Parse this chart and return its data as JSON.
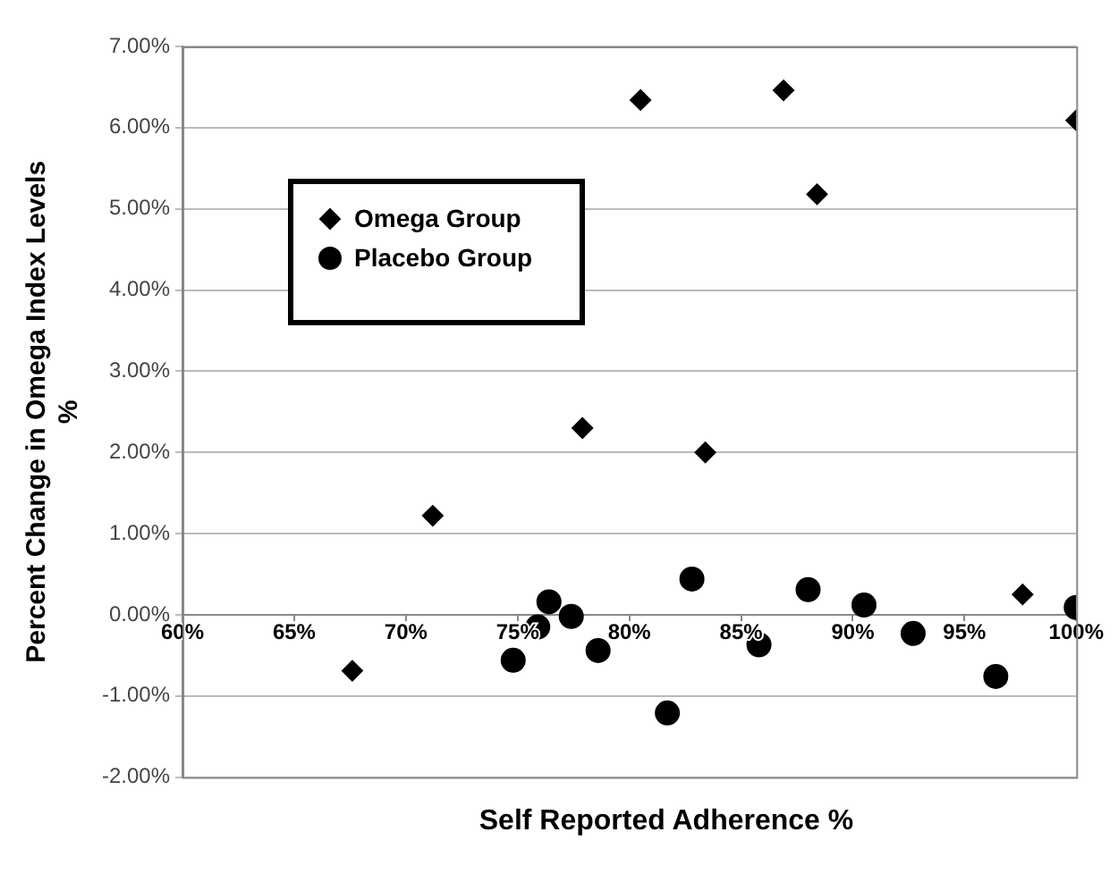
{
  "chart_data": {
    "type": "scatter",
    "xlabel": "Self Reported Adherence %",
    "ylabel": "Percent Change in Omega Index Levels\n%",
    "series": [
      {
        "name": "Omega Group",
        "color": "#000000",
        "marker": "diamond",
        "x": [
          67.6,
          71.2,
          77.9,
          83.4,
          97.6,
          80.5,
          86.9,
          88.4,
          100
        ],
        "values": [
          -0.69,
          1.22,
          2.3,
          2.0,
          0.25,
          6.34,
          6.46,
          5.18,
          6.09
        ]
      },
      {
        "name": "Placebo Group",
        "color": "#000000",
        "marker": "circle",
        "x": [
          74.8,
          75.9,
          76.4,
          77.4,
          78.6,
          81.7,
          82.8,
          85.8,
          88.0,
          90.5,
          92.7,
          96.4,
          100
        ],
        "values": [
          -0.56,
          -0.15,
          0.16,
          -0.02,
          -0.44,
          -1.21,
          0.44,
          -0.37,
          0.31,
          0.12,
          -0.23,
          -0.76,
          0.09
        ]
      }
    ],
    "xlim": [
      60,
      100
    ],
    "xticks": [
      {
        "value": 60,
        "label": "60%"
      },
      {
        "value": 65,
        "label": "65%"
      },
      {
        "value": 70,
        "label": "70%"
      },
      {
        "value": 75,
        "label": "75%"
      },
      {
        "value": 80,
        "label": "80%"
      },
      {
        "value": 85,
        "label": "85%"
      },
      {
        "value": 90,
        "label": "90%"
      },
      {
        "value": 95,
        "label": "95%"
      },
      {
        "value": 100,
        "label": "100%"
      }
    ],
    "ylim": [
      -2,
      7
    ],
    "yticks": [
      {
        "value": -2,
        "label": "-2.00%"
      },
      {
        "value": -1,
        "label": "-1.00%"
      },
      {
        "value": 0,
        "label": "0.00%"
      },
      {
        "value": 1,
        "label": "1.00%"
      },
      {
        "value": 2,
        "label": "2.00%"
      },
      {
        "value": 3,
        "label": "3.00%"
      },
      {
        "value": 4,
        "label": "4.00%"
      },
      {
        "value": 5,
        "label": "5.00%"
      },
      {
        "value": 6,
        "label": "6.00%"
      },
      {
        "value": 7,
        "label": "7.00%"
      }
    ],
    "grid": "y",
    "legend": "top left"
  }
}
